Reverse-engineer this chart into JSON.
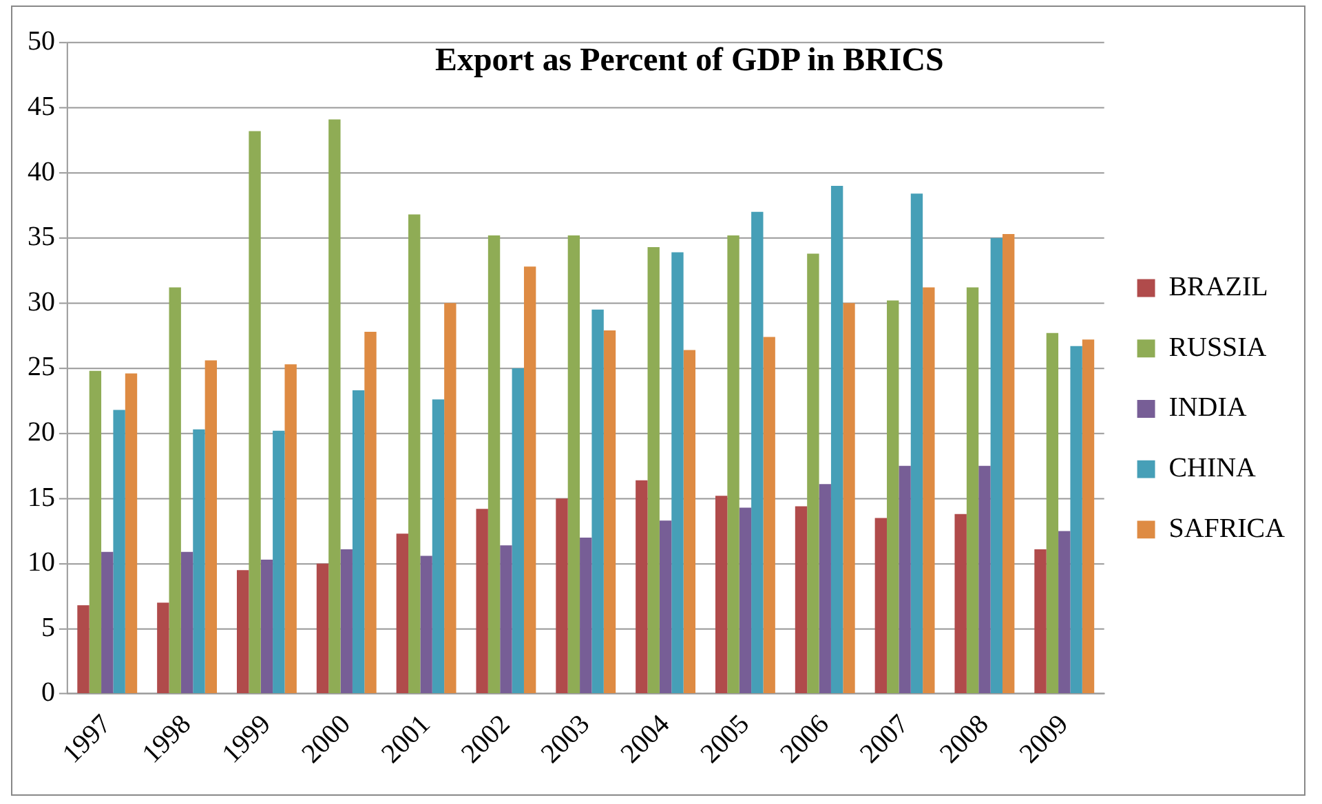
{
  "chart_data": {
    "type": "bar",
    "title": "Export as Percent of GDP in BRICS",
    "categories": [
      "1997",
      "1998",
      "1999",
      "2000",
      "2001",
      "2002",
      "2003",
      "2004",
      "2005",
      "2006",
      "2007",
      "2008",
      "2009"
    ],
    "series": [
      {
        "name": "BRAZIL",
        "color": "#b04b4b",
        "values": [
          6.8,
          7.0,
          9.5,
          10.0,
          12.3,
          14.2,
          15.0,
          16.4,
          15.2,
          14.4,
          13.5,
          13.8,
          11.1
        ]
      },
      {
        "name": "RUSSIA",
        "color": "#8fac55",
        "values": [
          24.8,
          31.2,
          43.2,
          44.1,
          36.8,
          35.2,
          35.2,
          34.3,
          35.2,
          33.8,
          30.2,
          31.2,
          27.7
        ]
      },
      {
        "name": "INDIA",
        "color": "#775e96",
        "values": [
          10.9,
          10.9,
          10.3,
          11.1,
          10.6,
          11.4,
          12.0,
          13.3,
          14.3,
          16.1,
          17.5,
          17.5,
          12.5
        ]
      },
      {
        "name": "CHINA",
        "color": "#469fb7",
        "values": [
          21.8,
          20.3,
          20.2,
          23.3,
          22.6,
          25.0,
          29.5,
          33.9,
          37.0,
          39.0,
          38.4,
          35.0,
          26.7
        ]
      },
      {
        "name": "SAFRICA",
        "color": "#de8b43",
        "values": [
          24.6,
          25.6,
          25.3,
          27.8,
          30.0,
          32.8,
          27.9,
          26.4,
          27.4,
          30.0,
          31.2,
          35.3,
          27.2
        ]
      }
    ],
    "ylim": [
      0,
      50
    ],
    "yticks": [
      0,
      5,
      10,
      15,
      20,
      25,
      30,
      35,
      40,
      45,
      50
    ],
    "grid": "y",
    "legend": "right"
  }
}
